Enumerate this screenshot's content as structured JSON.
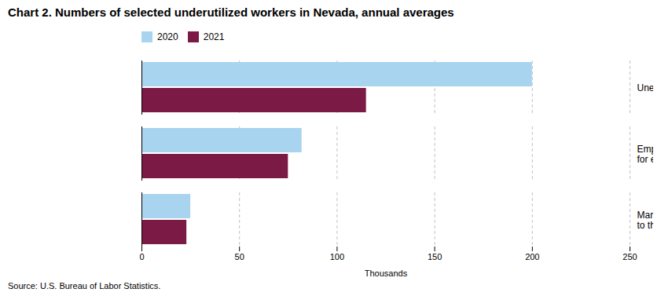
{
  "chart_data": {
    "type": "bar",
    "orientation": "horizontal",
    "title": "Chart 2. Numbers of selected underutilized workers in Nevada, annual averages",
    "categories": [
      "Unemployed",
      "Employed part time\nfor economic reasons",
      "Marginally attached\nto the labor force"
    ],
    "series": [
      {
        "name": "2020",
        "color": "#a8d4f0",
        "values": [
          200,
          82,
          25
        ]
      },
      {
        "name": "2021",
        "color": "#7b1a45",
        "values": [
          115,
          75,
          23
        ]
      }
    ],
    "xlabel": "Thousands",
    "xlim": [
      0,
      250
    ],
    "xticks": [
      0,
      50,
      100,
      150,
      200,
      250
    ],
    "grid": true,
    "legend": "top",
    "source": "Source: U.S. Bureau of Labor Statistics."
  }
}
